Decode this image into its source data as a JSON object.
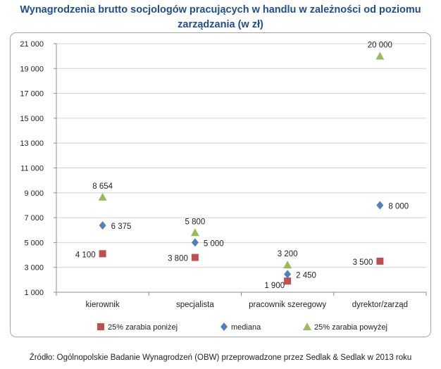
{
  "chart_data": {
    "type": "scatter",
    "title": "Wynagrodzenia brutto socjologów pracujących w handlu w zależności od poziomu zarządzania (w zł)",
    "categories": [
      "kierownik",
      "specjalista",
      "pracownik szeregowy",
      "dyrektor/zarząd"
    ],
    "series": [
      {
        "name": "25% zarabia poniżej",
        "marker": "square",
        "color": "#c0504d",
        "values": [
          4100,
          3800,
          1900,
          3500
        ],
        "labels": [
          "4 100",
          "3 800",
          "1 900",
          "3 500"
        ]
      },
      {
        "name": "mediana",
        "marker": "diamond",
        "color": "#4f81bd",
        "values": [
          6375,
          5000,
          2450,
          8000
        ],
        "labels": [
          "6 375",
          "5 000",
          "2 450",
          "8 000"
        ]
      },
      {
        "name": "25% zarabia powyżej",
        "marker": "triangle",
        "color": "#9bbb59",
        "values": [
          8654,
          5800,
          3200,
          20000
        ],
        "labels": [
          "8 654",
          "5 800",
          "3 200",
          "20 000"
        ]
      }
    ],
    "ylim": [
      1000,
      21000
    ],
    "yticks": [
      1000,
      3000,
      5000,
      7000,
      9000,
      11000,
      13000,
      15000,
      17000,
      19000,
      21000
    ],
    "ytick_labels": [
      "1 000",
      "3 000",
      "5 000",
      "7 000",
      "9 000",
      "11 000",
      "13 000",
      "15 000",
      "17 000",
      "19 000",
      "21 000"
    ],
    "grid": "horizontal",
    "legend_position": "bottom"
  },
  "footer": {
    "source": "Źródło: Ogólnopolskie Badanie Wynagrodzeń (OBW) przeprowadzone przez Sedlak & Sedlak w 2013 roku"
  }
}
